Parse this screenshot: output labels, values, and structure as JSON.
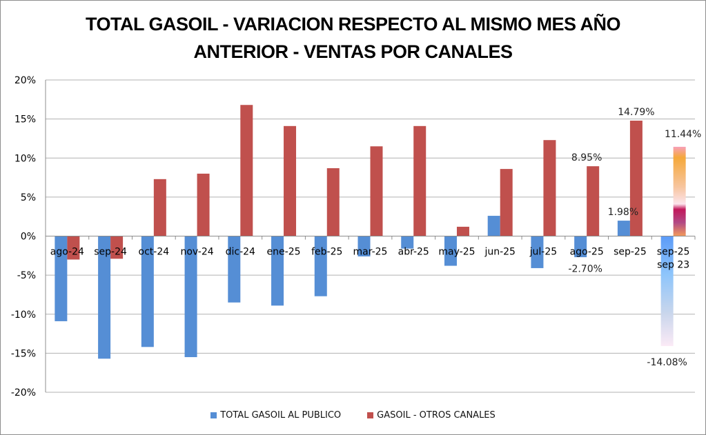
{
  "chart_data": {
    "type": "bar",
    "title_lines": [
      "TOTAL GASOIL - VARIACION RESPECTO AL MISMO MES AÑO",
      "ANTERIOR - VENTAS POR CANALES"
    ],
    "title": "TOTAL GASOIL - VARIACION RESPECTO AL MISMO MES AÑO ANTERIOR - VENTAS POR CANALES",
    "xlabel": "",
    "ylabel": "",
    "ylim": [
      -20,
      20
    ],
    "ytick_step": 5,
    "ytick_labels": [
      "20%",
      "15%",
      "10%",
      "5%",
      "0%",
      "-5%",
      "-10%",
      "-15%",
      "-20%"
    ],
    "grid": true,
    "legend_position": "bottom",
    "categories": [
      "ago-24",
      "sep-24",
      "oct-24",
      "nov-24",
      "dic-24",
      "ene-25",
      "feb-25",
      "mar-25",
      "abr-25",
      "may-25",
      "jun-25",
      "jul-25",
      "ago-25",
      "sep-25",
      "sep-25\nsep 23"
    ],
    "category_label_lines": [
      [
        "ago-24"
      ],
      [
        "sep-24"
      ],
      [
        "oct-24"
      ],
      [
        "nov-24"
      ],
      [
        "dic-24"
      ],
      [
        "ene-25"
      ],
      [
        "feb-25"
      ],
      [
        "mar-25"
      ],
      [
        "abr-25"
      ],
      [
        "may-25"
      ],
      [
        "jun-25"
      ],
      [
        "jul-25"
      ],
      [
        "ago-25"
      ],
      [
        "sep-25"
      ],
      [
        "sep-25",
        "sep 23"
      ]
    ],
    "series": [
      {
        "name": "TOTAL GASOIL AL PUBLICO",
        "color": "#558ED5",
        "values": [
          -10.9,
          -15.7,
          -14.2,
          -15.5,
          -8.5,
          -8.9,
          -7.7,
          -2.6,
          -1.6,
          -3.8,
          2.6,
          -4.1,
          -2.7,
          1.98,
          -14.08
        ],
        "data_labels": {
          "12": "-2.70%",
          "13": "1.98%",
          "14": "-14.08%"
        }
      },
      {
        "name": "GASOIL - OTROS CANALES",
        "color": "#C0504D",
        "values": [
          -3.0,
          -2.9,
          7.3,
          8.0,
          16.8,
          14.1,
          8.7,
          11.5,
          14.1,
          1.2,
          8.6,
          12.3,
          8.95,
          14.79,
          11.44
        ],
        "data_labels": {
          "12": "8.95%",
          "13": "14.79%",
          "14": "11.44%"
        }
      }
    ],
    "highlight_last_category": true,
    "highlight_colors": {
      "blue_gradient": [
        "#5B9BF8",
        "#8EC5FB",
        "#C9D6EC",
        "#FBEAF6"
      ],
      "warm_gradient": [
        "#F39A5A",
        "#C04D80",
        "#C2185B",
        "#FCE4EC",
        "#F7C59F",
        "#F5A83A",
        "#F8A0B8"
      ]
    }
  }
}
